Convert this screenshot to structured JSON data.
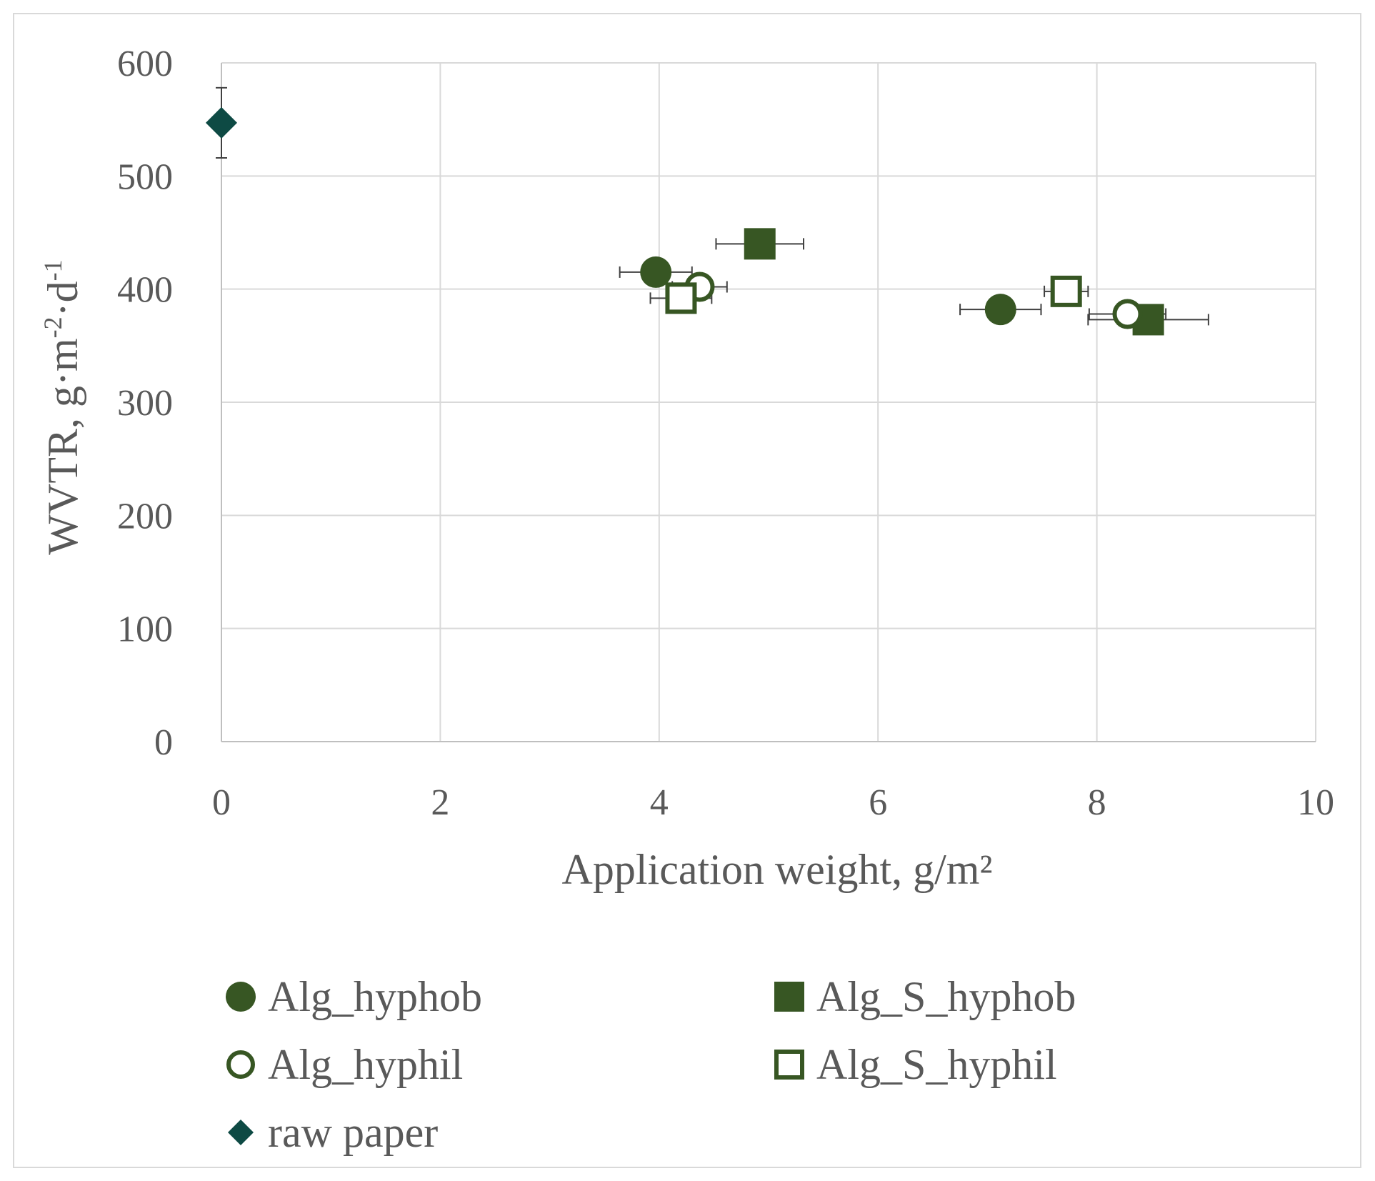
{
  "chart_data": {
    "type": "scatter",
    "title": "",
    "xlabel": "Application weight, g/m²",
    "ylabel": {
      "base": "WVTR, g·m",
      "exp1": "-2",
      "mid": "·d",
      "exp2": "-1"
    },
    "xlim": [
      0,
      10
    ],
    "ylim": [
      0,
      600
    ],
    "xticks": [
      0,
      2,
      4,
      6,
      8,
      10
    ],
    "yticks": [
      0,
      100,
      200,
      300,
      400,
      500,
      600
    ],
    "grid": true,
    "legend_position": "bottom",
    "series": [
      {
        "name": "Alg_hyphob",
        "marker": "circle",
        "filled": true,
        "color": "#375623",
        "points": [
          {
            "x": 3.97,
            "y": 415,
            "xerr": 0.33,
            "yerr": 0
          },
          {
            "x": 7.12,
            "y": 382,
            "xerr": 0.37,
            "yerr": 0
          }
        ]
      },
      {
        "name": "Alg_S_hyphob",
        "marker": "square",
        "filled": true,
        "color": "#375623",
        "points": [
          {
            "x": 4.92,
            "y": 440,
            "xerr": 0.4,
            "yerr": 0
          },
          {
            "x": 8.47,
            "y": 373,
            "xerr": 0.55,
            "yerr": 0
          }
        ]
      },
      {
        "name": "Alg_hyphil",
        "marker": "circle",
        "filled": false,
        "color": "#375623",
        "points": [
          {
            "x": 4.37,
            "y": 402,
            "xerr": 0.25,
            "yerr": 0
          },
          {
            "x": 8.28,
            "y": 378,
            "xerr": 0.35,
            "yerr": 3
          }
        ]
      },
      {
        "name": "Alg_S_hyphil",
        "marker": "square",
        "filled": false,
        "color": "#375623",
        "points": [
          {
            "x": 4.2,
            "y": 392,
            "xerr": 0.28,
            "yerr": 10
          },
          {
            "x": 7.72,
            "y": 398,
            "xerr": 0.2,
            "yerr": 10
          }
        ]
      },
      {
        "name": "raw paper",
        "marker": "diamond",
        "filled": true,
        "color": "#0e4a44",
        "points": [
          {
            "x": 0,
            "y": 547,
            "xerr": 0,
            "yerr": 31
          }
        ]
      }
    ]
  }
}
